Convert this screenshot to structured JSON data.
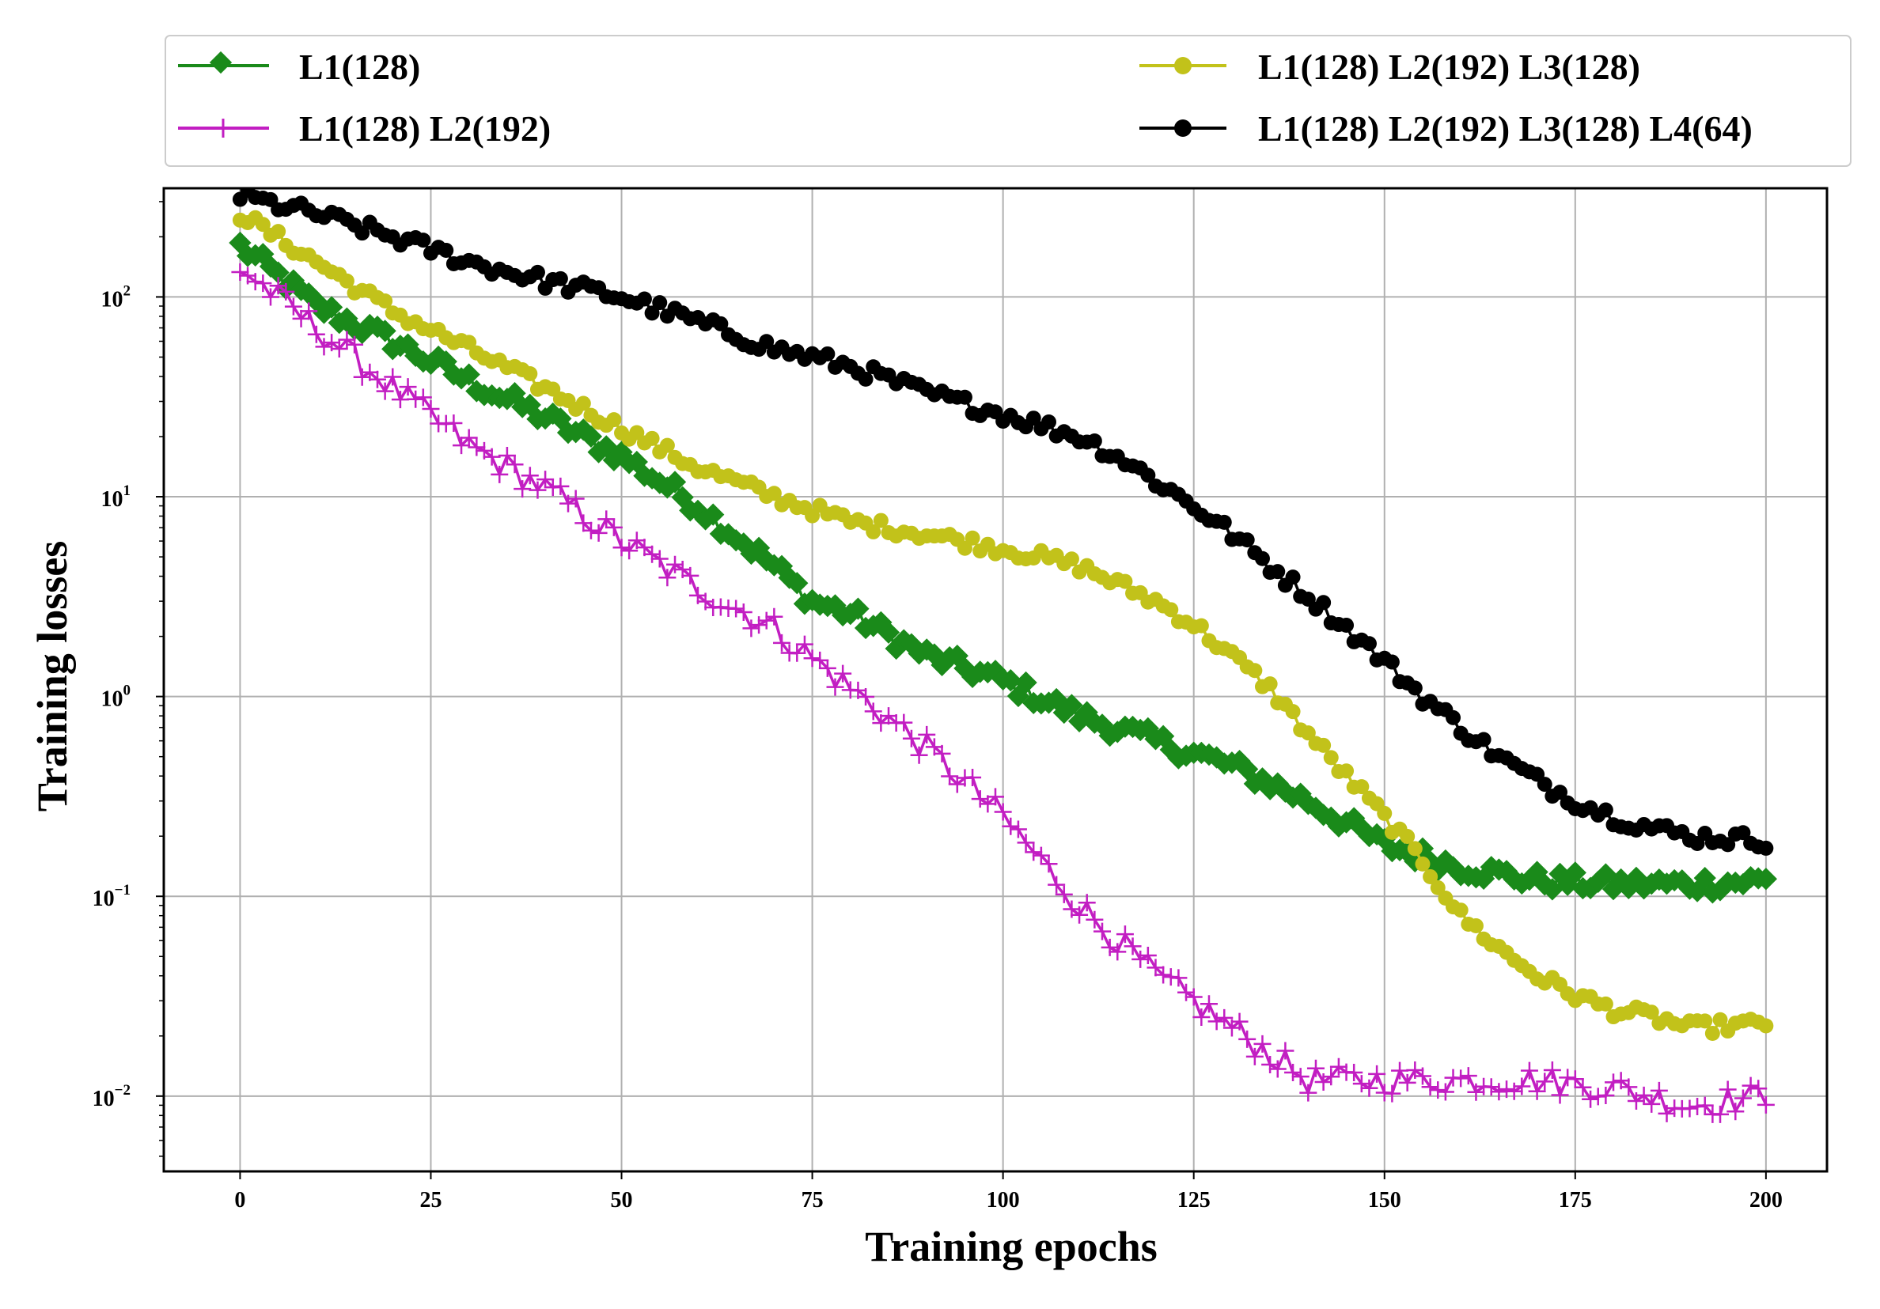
{
  "chart_data": {
    "type": "line",
    "title": "",
    "xlabel": "Training epochs",
    "ylabel": "Training losses",
    "yscale": "log",
    "xlim": [
      -10,
      208
    ],
    "ylim": [
      0.0042,
      350
    ],
    "grid": true,
    "legend_position": "top, above plot, 2 columns",
    "x_ticks": [
      0,
      25,
      50,
      75,
      100,
      125,
      150,
      175,
      200
    ],
    "y_ticks": [
      {
        "value": 0.01,
        "base": "10",
        "exp": "−2"
      },
      {
        "value": 0.1,
        "base": "10",
        "exp": "−1"
      },
      {
        "value": 1,
        "base": "10",
        "exp": "0"
      },
      {
        "value": 10,
        "base": "10",
        "exp": "1"
      },
      {
        "value": 100,
        "base": "10",
        "exp": "2"
      }
    ],
    "series": [
      {
        "name": "L1(128)",
        "color": "#1a8a1a",
        "marker": "diamond",
        "anchors_x": [
          0,
          10,
          20,
          30,
          40,
          50,
          60,
          70,
          75,
          80,
          90,
          100,
          110,
          120,
          130,
          140,
          150,
          160,
          170,
          180,
          190,
          200
        ],
        "anchors_y": [
          180,
          90,
          60,
          38,
          25,
          16,
          9,
          4.5,
          3,
          2.6,
          1.6,
          1.2,
          0.8,
          0.6,
          0.45,
          0.3,
          0.18,
          0.14,
          0.12,
          0.115,
          0.115,
          0.12
        ]
      },
      {
        "name": "L1(128) L2(192)",
        "color": "#c21ec2",
        "marker": "plus",
        "anchors_x": [
          0,
          10,
          20,
          30,
          40,
          50,
          60,
          70,
          80,
          90,
          100,
          110,
          120,
          130,
          140,
          150,
          160,
          170,
          180,
          190,
          200
        ],
        "anchors_y": [
          140,
          70,
          35,
          18,
          11,
          6,
          3.5,
          2.2,
          1.1,
          0.55,
          0.25,
          0.09,
          0.04,
          0.022,
          0.012,
          0.012,
          0.012,
          0.012,
          0.011,
          0.009,
          0.01
        ]
      },
      {
        "name": "L1(128) L2(192) L3(128)",
        "color": "#c2c21a",
        "marker": "circle",
        "anchors_x": [
          0,
          10,
          20,
          30,
          40,
          50,
          60,
          70,
          80,
          90,
          100,
          110,
          120,
          125,
          130,
          135,
          140,
          145,
          150,
          155,
          160,
          165,
          170,
          175,
          180,
          185,
          190,
          200
        ],
        "anchors_y": [
          260,
          150,
          85,
          55,
          35,
          22,
          14,
          10,
          7.5,
          6.5,
          5.5,
          4.5,
          3,
          2.3,
          1.6,
          1.1,
          0.65,
          0.4,
          0.25,
          0.15,
          0.08,
          0.055,
          0.04,
          0.032,
          0.027,
          0.025,
          0.022,
          0.023
        ]
      },
      {
        "name": "L1(128) L2(192) L3(128) L4(64)",
        "color": "#000000",
        "marker": "circle",
        "anchors_x": [
          0,
          10,
          20,
          30,
          40,
          50,
          60,
          70,
          80,
          90,
          100,
          110,
          115,
          120,
          125,
          130,
          135,
          140,
          145,
          150,
          155,
          160,
          165,
          170,
          175,
          180,
          185,
          190,
          200
        ],
        "anchors_y": [
          320,
          260,
          200,
          150,
          120,
          100,
          75,
          55,
          45,
          33,
          26,
          20,
          16,
          12,
          9,
          6.5,
          4.5,
          3.2,
          2.2,
          1.5,
          1.0,
          0.7,
          0.5,
          0.38,
          0.3,
          0.25,
          0.22,
          0.2,
          0.19
        ]
      }
    ]
  }
}
